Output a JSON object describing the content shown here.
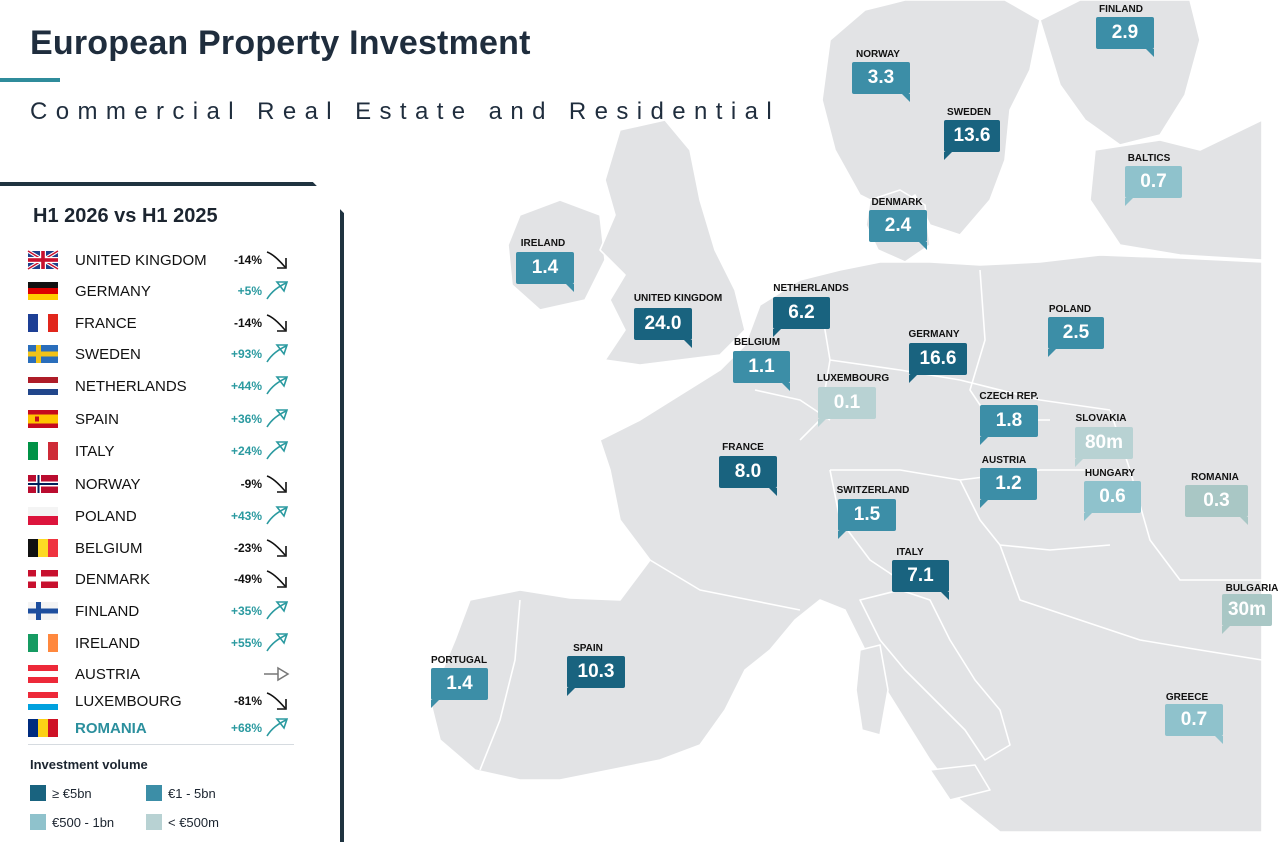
{
  "header": {
    "title": "European Property Investment",
    "subtitle": "Commercial Real Estate and Residential"
  },
  "colors": {
    "tier1": "#19637f",
    "tier2": "#3c8ea7",
    "tier3": "#8fc2cc",
    "tier4": "#b8d2d3",
    "tier_romania": "#a9c7c5",
    "accent": "#2f8c9b",
    "land": "#e2e3e5",
    "border": "#ffffff",
    "panel_border": "#1f3340"
  },
  "panel": {
    "title": "H1 2026 vs H1 2025",
    "rows": [
      {
        "country": "UNITED KINGDOM",
        "flag": "uk-flag-icon",
        "change": "-14%",
        "trend": "down"
      },
      {
        "country": "GERMANY",
        "flag": "germany-flag-icon",
        "change": "+5%",
        "trend": "up"
      },
      {
        "country": "FRANCE",
        "flag": "france-flag-icon",
        "change": "-14%",
        "trend": "down"
      },
      {
        "country": "SWEDEN",
        "flag": "sweden-flag-icon",
        "change": "+93%",
        "trend": "up"
      },
      {
        "country": "NETHERLANDS",
        "flag": "netherlands-flag-icon",
        "change": "+44%",
        "trend": "up"
      },
      {
        "country": "SPAIN",
        "flag": "spain-flag-icon",
        "change": "+36%",
        "trend": "up"
      },
      {
        "country": "ITALY",
        "flag": "italy-flag-icon",
        "change": "+24%",
        "trend": "up"
      },
      {
        "country": "NORWAY",
        "flag": "norway-flag-icon",
        "change": "-9%",
        "trend": "down"
      },
      {
        "country": "POLAND",
        "flag": "poland-flag-icon",
        "change": "+43%",
        "trend": "up"
      },
      {
        "country": "BELGIUM",
        "flag": "belgium-flag-icon",
        "change": "-23%",
        "trend": "down"
      },
      {
        "country": "DENMARK",
        "flag": "denmark-flag-icon",
        "change": "-49%",
        "trend": "down"
      },
      {
        "country": "FINLAND",
        "flag": "finland-flag-icon",
        "change": "+35%",
        "trend": "up"
      },
      {
        "country": "IRELAND",
        "flag": "ireland-flag-icon",
        "change": "+55%",
        "trend": "up"
      },
      {
        "country": "AUSTRIA",
        "flag": "austria-flag-icon",
        "change": "",
        "trend": "flat"
      },
      {
        "country": "LUXEMBOURG",
        "flag": "luxembourg-flag-icon",
        "change": "-81%",
        "trend": "down"
      },
      {
        "country": "ROMANIA",
        "flag": "romania-flag-icon",
        "change": "+68%",
        "trend": "up",
        "highlight": true
      }
    ]
  },
  "legend": {
    "title": "Investment volume",
    "items": [
      {
        "label": "≥ €5bn",
        "tier": "tier1"
      },
      {
        "label": "€1 - 5bn",
        "tier": "tier2"
      },
      {
        "label": "€500 - 1bn",
        "tier": "tier3"
      },
      {
        "label": "< €500m",
        "tier": "tier4"
      }
    ]
  },
  "map": {
    "markers": [
      {
        "name": "FINLAND",
        "value": "2.9",
        "tier": "tier2"
      },
      {
        "name": "NORWAY",
        "value": "3.3",
        "tier": "tier2"
      },
      {
        "name": "SWEDEN",
        "value": "13.6",
        "tier": "tier1"
      },
      {
        "name": "BALTICS",
        "value": "0.7",
        "tier": "tier3"
      },
      {
        "name": "DENMARK",
        "value": "2.4",
        "tier": "tier2"
      },
      {
        "name": "IRELAND",
        "value": "1.4",
        "tier": "tier2"
      },
      {
        "name": "UNITED KINGDOM",
        "value": "24.0",
        "tier": "tier1"
      },
      {
        "name": "NETHERLANDS",
        "value": "6.2",
        "tier": "tier1"
      },
      {
        "name": "BELGIUM",
        "value": "1.1",
        "tier": "tier2"
      },
      {
        "name": "GERMANY",
        "value": "16.6",
        "tier": "tier1"
      },
      {
        "name": "POLAND",
        "value": "2.5",
        "tier": "tier2"
      },
      {
        "name": "LUXEMBOURG",
        "value": "0.1",
        "tier": "tier4"
      },
      {
        "name": "CZECH REP.",
        "value": "1.8",
        "tier": "tier2"
      },
      {
        "name": "SLOVAKIA",
        "value": "80m",
        "tier": "tier4"
      },
      {
        "name": "FRANCE",
        "value": "8.0",
        "tier": "tier1"
      },
      {
        "name": "AUSTRIA",
        "value": "1.2",
        "tier": "tier2"
      },
      {
        "name": "HUNGARY",
        "value": "0.6",
        "tier": "tier3"
      },
      {
        "name": "ROMANIA",
        "value": "0.3",
        "tier": "tier_romania"
      },
      {
        "name": "SWITZERLAND",
        "value": "1.5",
        "tier": "tier2"
      },
      {
        "name": "ITALY",
        "value": "7.1",
        "tier": "tier1"
      },
      {
        "name": "BULGARIA",
        "value": "30m",
        "tier": "tier_romania"
      },
      {
        "name": "PORTUGAL",
        "value": "1.4",
        "tier": "tier2"
      },
      {
        "name": "SPAIN",
        "value": "10.3",
        "tier": "tier1"
      },
      {
        "name": "GREECE",
        "value": "0.7",
        "tier": "tier3"
      }
    ]
  }
}
